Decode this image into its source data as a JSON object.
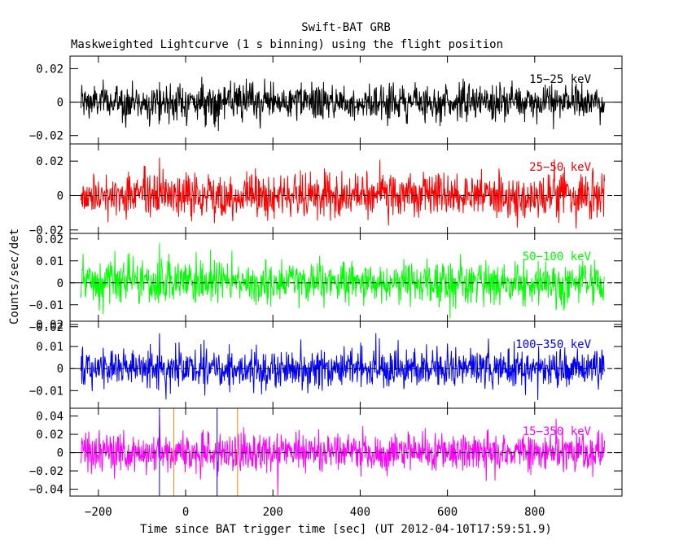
{
  "figure": {
    "title": "Swift-BAT GRB",
    "subtitle": "Maskweighted Lightcurve (1 s binning) using the flight position",
    "xlabel": "Time since BAT trigger time [sec] (UT 2012-04-10T17:59:51.9)",
    "ylabel": "Counts/sec/det"
  },
  "chart_data": {
    "type": "line",
    "title": "Swift-BAT GRB",
    "subtitle": "Maskweighted Lightcurve (1 s binning) using the flight position",
    "xlabel": "Time since BAT trigger time [sec] (UT 2012-04-10T17:59:51.9)",
    "ylabel": "Counts/sec/det",
    "x_range": [
      -240,
      960
    ],
    "x_bin_sec": 1,
    "xlim": [
      -265,
      1000
    ],
    "x_ticks": [
      -200,
      0,
      200,
      400,
      600,
      800
    ],
    "x_tick_labels": [
      "−200",
      "0",
      "200",
      "400",
      "600",
      "800"
    ],
    "vertical_markers": [
      {
        "x": -60,
        "color": "#0000ff"
      },
      {
        "x": -27,
        "color": "#ff8000"
      },
      {
        "x": 72,
        "color": "#0000ff"
      },
      {
        "x": 119,
        "color": "#ff8000"
      }
    ],
    "panels": [
      {
        "band": "15−25 keV",
        "color": "#000000",
        "ylim": [
          -0.025,
          0.0275
        ],
        "y_ticks": [
          0.02,
          0,
          -0.02
        ],
        "y_tick_labels": [
          "0.02",
          "0",
          "−0.02"
        ],
        "noise_sigma": 0.0055,
        "zero_line": "solid",
        "spike": {
          "x": -60,
          "y": 0.012
        }
      },
      {
        "band": "25−50 keV",
        "color": "#ff0000",
        "ylim": [
          -0.022,
          0.03
        ],
        "y_ticks": [
          0.02,
          0,
          -0.02
        ],
        "y_tick_labels": [
          "0.02",
          "0",
          "−0.02"
        ],
        "noise_sigma": 0.0065,
        "zero_line": "dashed",
        "spike": {
          "x": -60,
          "y": 0.022
        }
      },
      {
        "band": "50−100 keV",
        "color": "#00ff00",
        "ylim": [
          -0.0175,
          0.0225
        ],
        "y_ticks": [
          0.02,
          0.01,
          0,
          -0.01,
          -0.02
        ],
        "y_tick_labels": [
          "0.02",
          "0.01",
          "0",
          "−0.01",
          "−0.02"
        ],
        "noise_sigma": 0.005,
        "zero_line": "dashed",
        "spike": {
          "x": -60,
          "y": 0.018
        }
      },
      {
        "band": "100−350 keV",
        "color": "#0000ff",
        "ylim": [
          -0.018,
          0.0215
        ],
        "y_ticks": [
          0.02,
          0.01,
          0,
          -0.01
        ],
        "y_tick_labels": [
          "0.02",
          "0.01",
          "0",
          "−0.01"
        ],
        "noise_sigma": 0.0045,
        "zero_line": "dashed",
        "spike": {
          "x": -60,
          "y": 0.016
        }
      },
      {
        "band": "15−350 keV",
        "color": "#ff00ff",
        "ylim": [
          -0.0475,
          0.0485
        ],
        "y_ticks": [
          0.04,
          0.02,
          0,
          -0.02,
          -0.04
        ],
        "y_tick_labels": [
          "0.04",
          "0.02",
          "0",
          "−0.02",
          "−0.04"
        ],
        "noise_sigma": 0.011,
        "zero_line": "dashed",
        "spike": {
          "x": -60,
          "y": 0.04
        }
      }
    ]
  }
}
